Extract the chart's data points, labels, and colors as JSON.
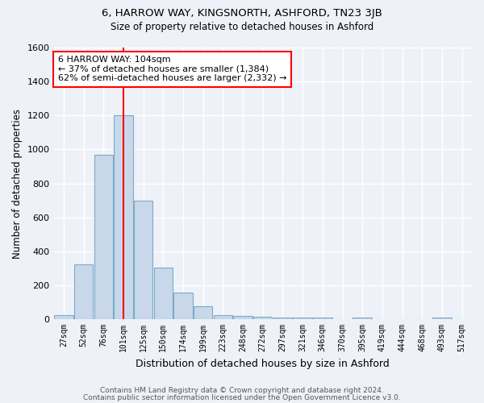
{
  "title1": "6, HARROW WAY, KINGSNORTH, ASHFORD, TN23 3JB",
  "title2": "Size of property relative to detached houses in Ashford",
  "xlabel": "Distribution of detached houses by size in Ashford",
  "ylabel": "Number of detached properties",
  "categories": [
    "27sqm",
    "52sqm",
    "76sqm",
    "101sqm",
    "125sqm",
    "150sqm",
    "174sqm",
    "199sqm",
    "223sqm",
    "248sqm",
    "272sqm",
    "297sqm",
    "321sqm",
    "346sqm",
    "370sqm",
    "395sqm",
    "419sqm",
    "444sqm",
    "468sqm",
    "493sqm",
    "517sqm"
  ],
  "values": [
    25,
    325,
    970,
    1200,
    700,
    305,
    155,
    78,
    25,
    18,
    15,
    12,
    10,
    8,
    0,
    12,
    0,
    0,
    0,
    12,
    0
  ],
  "bar_color": "#c8d8ea",
  "bar_edge_color": "#7aaac8",
  "vline_x": 3,
  "vline_color": "red",
  "annotation_text": "6 HARROW WAY: 104sqm\n← 37% of detached houses are smaller (1,384)\n62% of semi-detached houses are larger (2,332) →",
  "annotation_box_color": "white",
  "annotation_box_edge": "red",
  "ylim": [
    0,
    1600
  ],
  "yticks": [
    0,
    200,
    400,
    600,
    800,
    1000,
    1200,
    1400,
    1600
  ],
  "footer1": "Contains HM Land Registry data © Crown copyright and database right 2024.",
  "footer2": "Contains public sector information licensed under the Open Government Licence v3.0.",
  "bg_color": "#eef2f8",
  "grid_color": "white"
}
